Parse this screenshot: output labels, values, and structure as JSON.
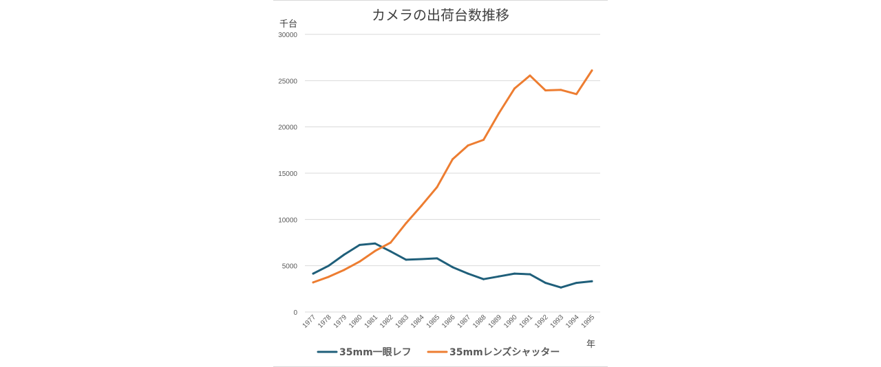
{
  "chart_data": {
    "type": "line",
    "title": "カメラの出荷台数推移",
    "ylabel": "千台",
    "xlabel": "年",
    "ylim": [
      0,
      30000
    ],
    "yticks": [
      0,
      5000,
      10000,
      15000,
      20000,
      25000,
      30000
    ],
    "grid": true,
    "legend_position": "bottom",
    "categories": [
      "1977",
      "1978",
      "1979",
      "1980",
      "1981",
      "1982",
      "1983",
      "1984",
      "1985",
      "1986",
      "1987",
      "1988",
      "1989",
      "1990",
      "1991",
      "1992",
      "1993",
      "1994",
      "1995"
    ],
    "series": [
      {
        "name": "35mm一眼レフ",
        "color": "#1f5f7a",
        "values": [
          4150,
          5000,
          6200,
          7250,
          7400,
          6550,
          5650,
          5720,
          5800,
          4850,
          4150,
          3550,
          3850,
          4150,
          4080,
          3150,
          2650,
          3150,
          3320
        ]
      },
      {
        "name": "35mmレンズシャッター",
        "color": "#ed7d31",
        "values": [
          3200,
          3800,
          4550,
          5450,
          6600,
          7500,
          9600,
          11500,
          13500,
          16500,
          18000,
          18600,
          21500,
          24150,
          25550,
          23950,
          24000,
          23550,
          26100
        ]
      }
    ]
  }
}
